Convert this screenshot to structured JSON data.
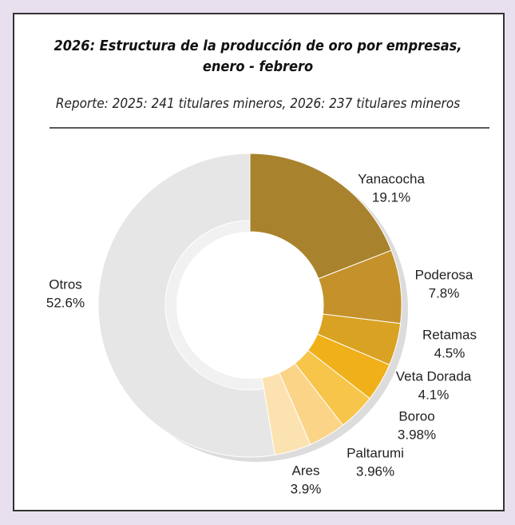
{
  "chart_data": {
    "type": "donut",
    "title": [
      "2026: Estructura de la producción de oro por empresas,",
      "enero - febrero"
    ],
    "subtitle": "Reporte: 2025: 241 titulares mineros, 2026: 237 titulares mineros",
    "categories": [
      "Yanacocha",
      "Poderosa",
      "Retamas",
      "Veta Dorada",
      "Boroo",
      "Paltarumi",
      "Ares",
      "Otros"
    ],
    "values": [
      19.1,
      7.8,
      4.5,
      4.1,
      3.98,
      3.96,
      3.9,
      52.6
    ],
    "value_labels": [
      "19.1%",
      "7.8%",
      "4.5%",
      "4.1%",
      "3.98%",
      "3.96%",
      "3.9%",
      "52.6%"
    ],
    "colors": [
      "#a9822d",
      "#c4912b",
      "#d9a223",
      "#efb01a",
      "#f7c54a",
      "#fbd488",
      "#fde2b1",
      "#e6e6e6"
    ]
  }
}
